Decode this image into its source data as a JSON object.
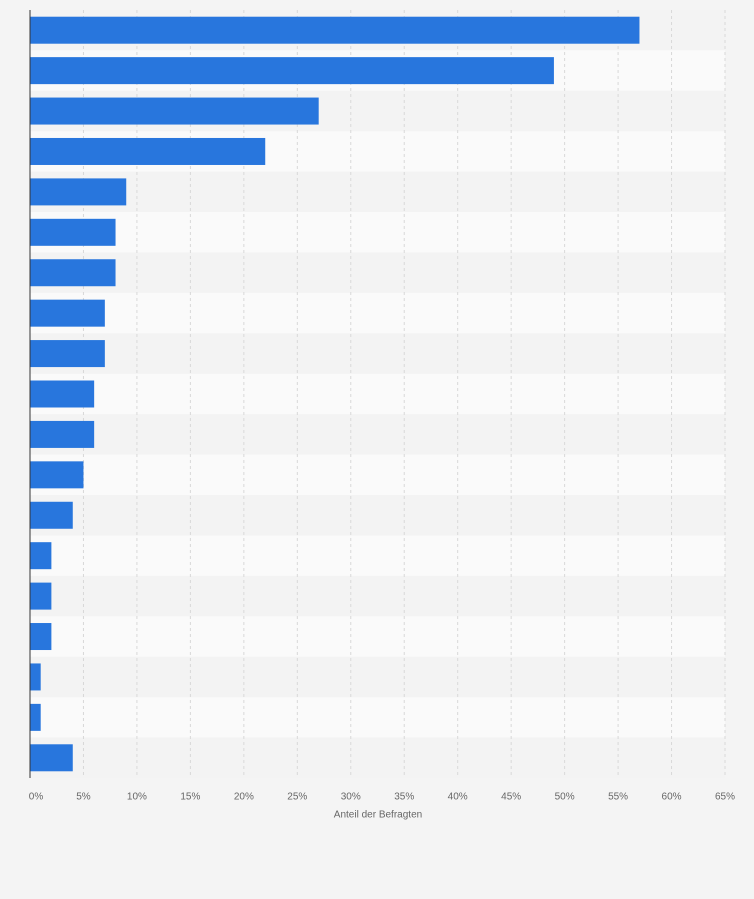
{
  "chart_data": {
    "type": "bar",
    "orientation": "horizontal",
    "x_label": "Anteil der Befragten",
    "categories": [
      null,
      null,
      null,
      null,
      null,
      null,
      null,
      null,
      null,
      null,
      null,
      null,
      null,
      null,
      null,
      null,
      null,
      null,
      null
    ],
    "values": [
      57,
      49,
      27,
      22,
      9,
      8,
      8,
      7,
      7,
      6,
      6,
      5,
      4,
      2,
      2,
      2,
      1,
      1,
      4
    ],
    "color": "#2876dd",
    "xlim": [
      0,
      65
    ],
    "xticks": [
      {
        "value": 0,
        "label": "0%"
      },
      {
        "value": 5,
        "label": "5%"
      },
      {
        "value": 10,
        "label": "10%"
      },
      {
        "value": 15,
        "label": "15%"
      },
      {
        "value": 20,
        "label": "20%"
      },
      {
        "value": 25,
        "label": "25%"
      },
      {
        "value": 30,
        "label": "30%"
      },
      {
        "value": 35,
        "label": "35%"
      },
      {
        "value": 40,
        "label": "40%"
      },
      {
        "value": 45,
        "label": "45%"
      },
      {
        "value": 50,
        "label": "50%"
      },
      {
        "value": 55,
        "label": "55%"
      },
      {
        "value": 60,
        "label": "60%"
      },
      {
        "value": 65,
        "label": "65%"
      }
    ],
    "grid": true
  }
}
